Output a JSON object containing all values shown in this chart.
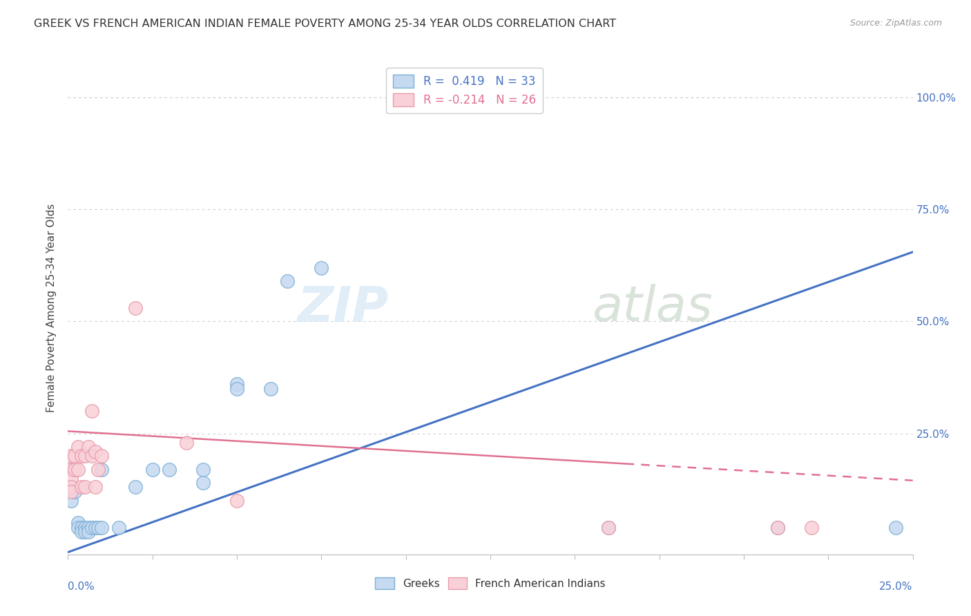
{
  "title": "GREEK VS FRENCH AMERICAN INDIAN FEMALE POVERTY AMONG 25-34 YEAR OLDS CORRELATION CHART",
  "source": "Source: ZipAtlas.com",
  "ylabel": "Female Poverty Among 25-34 Year Olds",
  "ylabel_right_ticks": [
    "100.0%",
    "75.0%",
    "50.0%",
    "25.0%"
  ],
  "ylabel_right_vals": [
    1.0,
    0.75,
    0.5,
    0.25
  ],
  "x_min": 0.0,
  "x_max": 0.25,
  "y_min": -0.02,
  "y_max": 1.08,
  "greek_r": 0.419,
  "greek_n": 33,
  "french_r": -0.214,
  "french_n": 26,
  "greek_color": "#c5d9f1",
  "greek_edge_color": "#7bafd4",
  "greek_line_color": "#4472C4",
  "french_color": "#f9d0d8",
  "french_edge_color": "#e89aaa",
  "french_line_color": "#e07090",
  "watermark_zip": "ZIP",
  "watermark_atlas": "atlas",
  "background_color": "#ffffff",
  "greek_line_x0": 0.0,
  "greek_line_y0": -0.015,
  "greek_line_x1": 0.25,
  "greek_line_y1": 0.655,
  "french_line_x0": 0.0,
  "french_line_y0": 0.255,
  "french_line_x1": 0.25,
  "french_line_y1": 0.145,
  "greek_x": [
    0.001,
    0.001,
    0.001,
    0.001,
    0.002,
    0.002,
    0.003,
    0.003,
    0.004,
    0.004,
    0.005,
    0.005,
    0.006,
    0.006,
    0.007,
    0.008,
    0.009,
    0.01,
    0.01,
    0.015,
    0.02,
    0.025,
    0.03,
    0.04,
    0.04,
    0.05,
    0.05,
    0.06,
    0.065,
    0.075,
    0.16,
    0.21,
    0.245
  ],
  "greek_y": [
    0.17,
    0.13,
    0.12,
    0.1,
    0.17,
    0.12,
    0.05,
    0.04,
    0.04,
    0.03,
    0.04,
    0.03,
    0.04,
    0.03,
    0.04,
    0.04,
    0.04,
    0.17,
    0.04,
    0.04,
    0.13,
    0.17,
    0.17,
    0.17,
    0.14,
    0.36,
    0.35,
    0.35,
    0.59,
    0.62,
    0.04,
    0.04,
    0.04
  ],
  "french_x": [
    0.001,
    0.001,
    0.001,
    0.001,
    0.001,
    0.002,
    0.002,
    0.003,
    0.003,
    0.004,
    0.004,
    0.005,
    0.005,
    0.006,
    0.007,
    0.007,
    0.008,
    0.008,
    0.009,
    0.01,
    0.02,
    0.035,
    0.05,
    0.16,
    0.21,
    0.22
  ],
  "french_y": [
    0.2,
    0.17,
    0.15,
    0.13,
    0.12,
    0.2,
    0.17,
    0.22,
    0.17,
    0.2,
    0.13,
    0.2,
    0.13,
    0.22,
    0.3,
    0.2,
    0.21,
    0.13,
    0.17,
    0.2,
    0.53,
    0.23,
    0.1,
    0.04,
    0.04,
    0.04
  ]
}
